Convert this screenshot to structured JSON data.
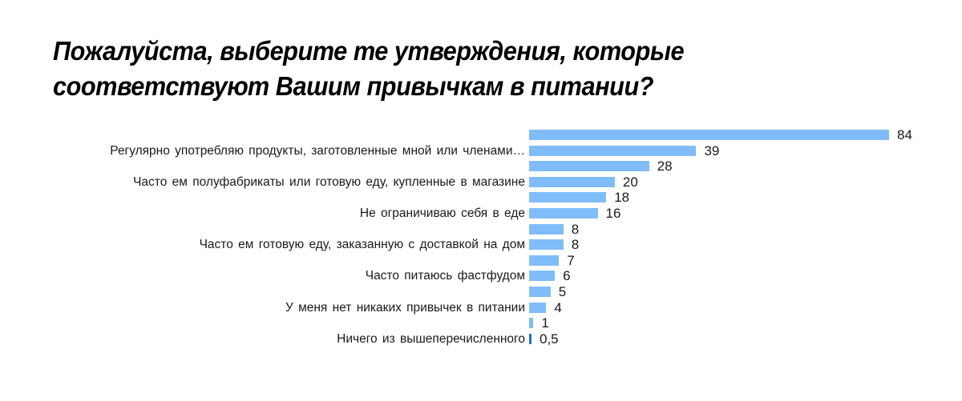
{
  "chart_data": {
    "type": "bar",
    "orientation": "horizontal",
    "title": "Пожалуйста, выберите те утверждения, которые соответствуют Вашим привычкам в питании?",
    "title_lines": [
      "Пожалуйста, выберите те утверждения, которые",
      "соответствуют Вашим привычкам в питании?"
    ],
    "xlabel": "",
    "ylabel": "",
    "grid": false,
    "legend": null,
    "categories": [
      "",
      "Регулярно употребляю продукты, заготовленные мной или членами…",
      "",
      "Часто ем полуфабрикаты или готовую еду, купленные в магазине",
      "",
      "Не ограничиваю себя в еде",
      "",
      "Часто ем готовую еду, заказанную с доставкой на дом",
      "",
      "Часто питаюсь фастфудом",
      "",
      "У меня нет никаких привычек в питании",
      "",
      "Ничего из вышеперечисленного"
    ],
    "values": [
      84,
      39,
      28,
      20,
      18,
      16,
      8,
      8,
      7,
      6,
      5,
      4,
      1,
      0.5
    ],
    "value_labels": [
      "84",
      "39",
      "28",
      "20",
      "18",
      "16",
      "8",
      "8",
      "7",
      "6",
      "5",
      "4",
      "1",
      "0,5"
    ],
    "colors": {
      "bar": "#80bdf8",
      "highlight_bar": "#1f70d3",
      "text": "#1a1a1a"
    },
    "highlight_index": 13,
    "xlim": [
      0,
      84
    ]
  }
}
